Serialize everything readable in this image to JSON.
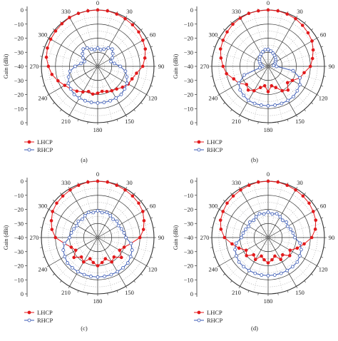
{
  "chart_data": [
    {
      "type": "polar-line",
      "panel_label": "(a)",
      "rlabel": "Gain (dBi)",
      "rlim": [
        -40,
        0
      ],
      "rticks": [
        0,
        -10,
        -20,
        -30,
        -40
      ],
      "angle_ticks": [
        "0",
        "30",
        "60",
        "90",
        "120",
        "150",
        "180",
        "210",
        "240",
        "270",
        "300",
        "330"
      ],
      "legend": {
        "position": "bottom-left",
        "entries": [
          "LHCP",
          "RHCP"
        ]
      },
      "series": [
        {
          "name": "LHCP",
          "color": "#e31a1c",
          "marker": "filled-circle",
          "angles": [
            0,
            10,
            20,
            30,
            40,
            50,
            60,
            70,
            80,
            90,
            100,
            110,
            120,
            130,
            140,
            150,
            160,
            170,
            180,
            190,
            200,
            210,
            220,
            230,
            240,
            250,
            260,
            270,
            280,
            290,
            300,
            310,
            320,
            330,
            340,
            350
          ],
          "values": [
            0,
            0,
            -0.5,
            -1,
            -1.5,
            -2,
            -3,
            -4,
            -6,
            -8,
            -12,
            -14,
            -15,
            -17,
            -19,
            -20,
            -21,
            -22,
            -21,
            -20,
            -21,
            -19,
            -17,
            -15,
            -13,
            -10,
            -7,
            -5,
            -3,
            -2,
            -1.5,
            -1,
            -0.5,
            0,
            0,
            0
          ]
        },
        {
          "name": "RHCP",
          "color": "#3a5ab5",
          "marker": "open-circle",
          "angles": [
            0,
            10,
            20,
            30,
            40,
            50,
            60,
            70,
            80,
            90,
            100,
            110,
            120,
            130,
            140,
            150,
            160,
            170,
            180,
            190,
            200,
            210,
            220,
            230,
            240,
            250,
            260,
            270,
            280,
            290,
            300,
            310,
            320,
            330,
            340,
            350
          ],
          "values": [
            -27,
            -28,
            -27,
            -25,
            -24,
            -26,
            -28,
            -30,
            -28,
            -24,
            -20,
            -18,
            -16,
            -15,
            -14,
            -14,
            -14,
            -14,
            -14,
            -14,
            -14,
            -14,
            -14,
            -15,
            -16,
            -18,
            -20,
            -24,
            -28,
            -30,
            -28,
            -26,
            -24,
            -25,
            -27,
            -28
          ]
        }
      ]
    },
    {
      "type": "polar-line",
      "panel_label": "(b)",
      "rlabel": "Gain (dBi)",
      "rlim": [
        -40,
        0
      ],
      "rticks": [
        0,
        -10,
        -20,
        -30,
        -40
      ],
      "angle_ticks": [
        "0",
        "30",
        "60",
        "90",
        "120",
        "150",
        "180",
        "210",
        "240",
        "270",
        "300",
        "330"
      ],
      "legend": {
        "position": "bottom-left",
        "entries": [
          "LHCP",
          "RHCP"
        ]
      },
      "series": [
        {
          "name": "LHCP",
          "color": "#e31a1c",
          "marker": "filled-circle",
          "angles": [
            0,
            10,
            20,
            30,
            40,
            50,
            60,
            70,
            80,
            90,
            100,
            110,
            120,
            130,
            140,
            150,
            160,
            170,
            180,
            190,
            200,
            210,
            220,
            230,
            240,
            250,
            260,
            270,
            280,
            290,
            300,
            310,
            320,
            330,
            340,
            350
          ],
          "values": [
            0,
            0,
            -0.5,
            -1,
            -2,
            -3,
            -4,
            -6,
            -8,
            -10,
            -14,
            -16,
            -20,
            -22,
            -18,
            -20,
            -24,
            -26,
            -22,
            -26,
            -24,
            -20,
            -18,
            -20,
            -16,
            -14,
            -10,
            -8,
            -6,
            -4,
            -3,
            -2,
            -1,
            -0.5,
            0,
            0
          ]
        },
        {
          "name": "RHCP",
          "color": "#3a5ab5",
          "marker": "open-circle",
          "angles": [
            0,
            10,
            20,
            30,
            40,
            50,
            60,
            70,
            80,
            90,
            100,
            110,
            120,
            130,
            140,
            150,
            160,
            170,
            180,
            190,
            200,
            210,
            220,
            230,
            240,
            250,
            260,
            270,
            280,
            290,
            300,
            310,
            320,
            330,
            340,
            350
          ],
          "values": [
            -28,
            -29,
            -30,
            -31,
            -32,
            -33,
            -34,
            -35,
            -36,
            -34,
            -22,
            -16,
            -14,
            -13,
            -12,
            -12,
            -12,
            -12,
            -12,
            -12,
            -12,
            -12,
            -13,
            -14,
            -16,
            -22,
            -34,
            -36,
            -35,
            -34,
            -33,
            -32,
            -31,
            -30,
            -29,
            -28
          ]
        }
      ]
    },
    {
      "type": "polar-line",
      "panel_label": "(c)",
      "rlabel": "Gain (dBi)",
      "rlim": [
        -40,
        0
      ],
      "rticks": [
        0,
        -10,
        -20,
        -30,
        -40
      ],
      "angle_ticks": [
        "0",
        "30",
        "60",
        "90",
        "120",
        "150",
        "180",
        "210",
        "240",
        "270",
        "300",
        "330"
      ],
      "legend": {
        "position": "bottom-left",
        "entries": [
          "LHCP",
          "RHCP"
        ]
      },
      "series": [
        {
          "name": "LHCP",
          "color": "#e31a1c",
          "marker": "filled-circle",
          "angles": [
            0,
            10,
            20,
            30,
            40,
            50,
            60,
            70,
            80,
            90,
            100,
            110,
            120,
            130,
            140,
            150,
            160,
            170,
            180,
            190,
            200,
            210,
            220,
            230,
            240,
            250,
            260,
            270,
            280,
            290,
            300,
            310,
            320,
            330,
            340,
            350
          ],
          "values": [
            0,
            0,
            -0.5,
            -1,
            -1.5,
            -2,
            -3,
            -5,
            -7,
            -10,
            -16,
            -20,
            -22,
            -18,
            -22,
            -20,
            -24,
            -22,
            -20,
            -22,
            -24,
            -20,
            -22,
            -18,
            -22,
            -20,
            -16,
            -10,
            -7,
            -5,
            -3,
            -2,
            -1.5,
            -1,
            -0.5,
            0
          ]
        },
        {
          "name": "RHCP",
          "color": "#3a5ab5",
          "marker": "open-circle",
          "angles": [
            0,
            10,
            20,
            30,
            40,
            50,
            60,
            70,
            80,
            90,
            100,
            110,
            120,
            130,
            140,
            150,
            160,
            170,
            180,
            190,
            200,
            210,
            220,
            230,
            240,
            250,
            260,
            270,
            280,
            290,
            300,
            310,
            320,
            330,
            340,
            350
          ],
          "values": [
            -21,
            -22,
            -21,
            -22,
            -23,
            -22,
            -23,
            -22,
            -21,
            -20,
            -16,
            -14,
            -13,
            -12,
            -12,
            -12,
            -12,
            -12,
            -12,
            -12,
            -12,
            -12,
            -12,
            -12,
            -13,
            -14,
            -16,
            -20,
            -21,
            -22,
            -23,
            -22,
            -23,
            -22,
            -21,
            -22
          ]
        }
      ]
    },
    {
      "type": "polar-line",
      "panel_label": "(d)",
      "rlabel": "Gain (dBi)",
      "rlim": [
        -40,
        0
      ],
      "rticks": [
        0,
        -10,
        -20,
        -30,
        -40
      ],
      "angle_ticks": [
        "0",
        "30",
        "60",
        "90",
        "120",
        "150",
        "180",
        "210",
        "240",
        "270",
        "300",
        "330"
      ],
      "legend": {
        "position": "bottom-left",
        "entries": [
          "LHCP",
          "RHCP"
        ]
      },
      "series": [
        {
          "name": "LHCP",
          "color": "#e31a1c",
          "marker": "filled-circle",
          "angles": [
            0,
            10,
            20,
            30,
            40,
            50,
            60,
            70,
            80,
            90,
            100,
            110,
            120,
            130,
            140,
            150,
            160,
            170,
            180,
            190,
            200,
            210,
            220,
            230,
            240,
            250,
            260,
            270,
            280,
            290,
            300,
            310,
            320,
            330,
            340,
            350
          ],
          "values": [
            0,
            0,
            -0.5,
            -1,
            -1.5,
            -2,
            -3,
            -4,
            -6,
            -9,
            -14,
            -18,
            -22,
            -20,
            -24,
            -22,
            -26,
            -24,
            -22,
            -24,
            -26,
            -22,
            -24,
            -20,
            -22,
            -18,
            -14,
            -9,
            -6,
            -4,
            -3,
            -2,
            -1.5,
            -1,
            -0.5,
            0
          ]
        },
        {
          "name": "RHCP",
          "color": "#3a5ab5",
          "marker": "open-circle",
          "angles": [
            0,
            10,
            20,
            30,
            40,
            50,
            60,
            70,
            80,
            90,
            100,
            110,
            120,
            130,
            140,
            150,
            160,
            170,
            180,
            190,
            200,
            210,
            220,
            230,
            240,
            250,
            260,
            270,
            280,
            290,
            300,
            310,
            320,
            330,
            340,
            350
          ],
          "values": [
            -22,
            -23,
            -22,
            -23,
            -24,
            -23,
            -24,
            -23,
            -22,
            -21,
            -17,
            -15,
            -14,
            -13,
            -13,
            -13,
            -13,
            -13,
            -13,
            -13,
            -13,
            -13,
            -13,
            -13,
            -14,
            -15,
            -17,
            -21,
            -22,
            -23,
            -24,
            -23,
            -24,
            -23,
            -22,
            -23
          ]
        }
      ]
    }
  ]
}
